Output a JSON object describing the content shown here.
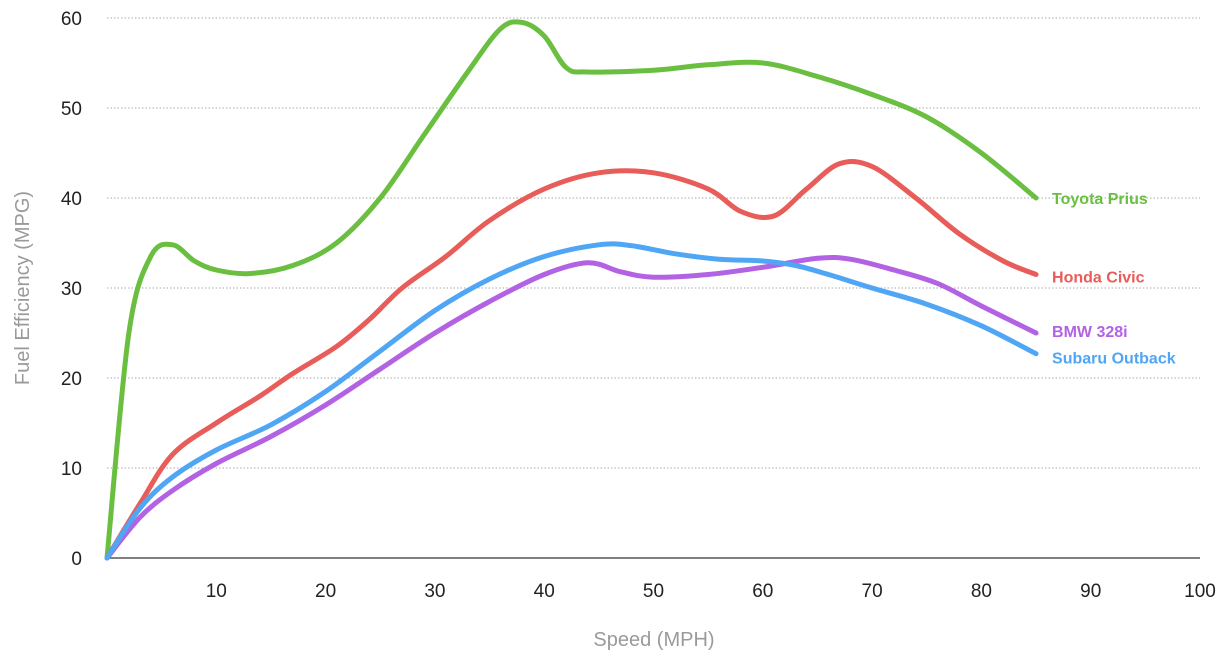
{
  "chart_data": {
    "type": "line",
    "xlabel": "Speed (MPH)",
    "ylabel": "Fuel Efficiency (MPG)",
    "xlim": [
      0,
      100
    ],
    "ylim": [
      0,
      60
    ],
    "x_ticks": [
      "10",
      "20",
      "30",
      "40",
      "50",
      "60",
      "70",
      "80",
      "90",
      "100"
    ],
    "y_ticks": [
      "0",
      "10",
      "20",
      "30",
      "40",
      "50",
      "60"
    ],
    "grid": "horizontal dotted",
    "legend": "labels at line ends (right)",
    "series": [
      {
        "name": "Toyota Prius",
        "color": "#6abf40",
        "points": [
          [
            0,
            0
          ],
          [
            2,
            25
          ],
          [
            4,
            33.5
          ],
          [
            6,
            34.8
          ],
          [
            8,
            33
          ],
          [
            10,
            32
          ],
          [
            13,
            31.6
          ],
          [
            17,
            32.5
          ],
          [
            21,
            35
          ],
          [
            25,
            40
          ],
          [
            29,
            47
          ],
          [
            33,
            54
          ],
          [
            36,
            58.8
          ],
          [
            38,
            59.5
          ],
          [
            40,
            58
          ],
          [
            42,
            54.5
          ],
          [
            44,
            54
          ],
          [
            50,
            54.2
          ],
          [
            55,
            54.8
          ],
          [
            60,
            55
          ],
          [
            65,
            53.5
          ],
          [
            70,
            51.5
          ],
          [
            75,
            49
          ],
          [
            80,
            45
          ],
          [
            85,
            40
          ]
        ]
      },
      {
        "name": "Honda Civic",
        "color": "#e85c59",
        "points": [
          [
            0,
            0
          ],
          [
            3,
            6
          ],
          [
            6,
            11.5
          ],
          [
            10,
            15
          ],
          [
            14,
            18
          ],
          [
            17,
            20.5
          ],
          [
            21,
            23.5
          ],
          [
            24,
            26.5
          ],
          [
            27,
            30
          ],
          [
            31,
            33.5
          ],
          [
            35,
            37.5
          ],
          [
            40,
            41
          ],
          [
            45,
            42.8
          ],
          [
            50,
            42.8
          ],
          [
            55,
            41
          ],
          [
            58,
            38.5
          ],
          [
            61,
            38
          ],
          [
            64,
            41
          ],
          [
            67,
            43.8
          ],
          [
            70,
            43.5
          ],
          [
            74,
            40
          ],
          [
            78,
            36
          ],
          [
            82,
            33
          ],
          [
            85,
            31.5
          ]
        ]
      },
      {
        "name": "BMW 328i",
        "color": "#b262e3",
        "points": [
          [
            0,
            0
          ],
          [
            3,
            4.5
          ],
          [
            6,
            7.5
          ],
          [
            10,
            10.5
          ],
          [
            15,
            13.5
          ],
          [
            20,
            17
          ],
          [
            25,
            21
          ],
          [
            30,
            25
          ],
          [
            35,
            28.5
          ],
          [
            40,
            31.5
          ],
          [
            44,
            32.8
          ],
          [
            47,
            31.8
          ],
          [
            50,
            31.2
          ],
          [
            55,
            31.5
          ],
          [
            60,
            32.3
          ],
          [
            65,
            33.3
          ],
          [
            68,
            33.2
          ],
          [
            72,
            32
          ],
          [
            76,
            30.5
          ],
          [
            80,
            28
          ],
          [
            85,
            25
          ]
        ]
      },
      {
        "name": "Subaru Outback",
        "color": "#4fa6f5",
        "points": [
          [
            0,
            0
          ],
          [
            3,
            5.5
          ],
          [
            6,
            9
          ],
          [
            10,
            12
          ],
          [
            15,
            14.8
          ],
          [
            20,
            18.5
          ],
          [
            25,
            23
          ],
          [
            30,
            27.5
          ],
          [
            35,
            31
          ],
          [
            40,
            33.5
          ],
          [
            45,
            34.8
          ],
          [
            48,
            34.7
          ],
          [
            52,
            33.8
          ],
          [
            56,
            33.2
          ],
          [
            60,
            33
          ],
          [
            63,
            32.5
          ],
          [
            66,
            31.5
          ],
          [
            70,
            30
          ],
          [
            75,
            28.2
          ],
          [
            80,
            25.8
          ],
          [
            85,
            22.7
          ]
        ]
      }
    ]
  }
}
